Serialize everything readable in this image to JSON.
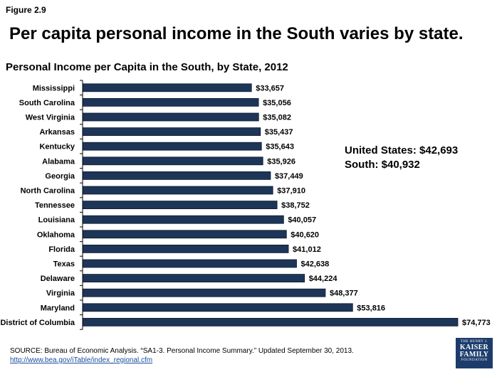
{
  "figure_label": "Figure 2.9",
  "headline": "Per capita personal income in the South varies by state.",
  "summary": {
    "line1": "United States: $42,693",
    "line2": "South: $40,932"
  },
  "source": {
    "text": "SOURCE: Bureau of Economic Analysis. “SA1-3. Personal Income Summary.” Updated September 30, 2013.",
    "url": "http://www.bea.gov/iTable/index_regional.cfm"
  },
  "logo": {
    "line1": "THE HENRY J.",
    "line2": "KAISER",
    "line3": "FAMILY",
    "line4": "FOUNDATION"
  },
  "colors": {
    "bar": "#1d3557",
    "bar_stroke": "#0d1a33",
    "axis": "#000000",
    "logo_bg": "#1d3c6c"
  },
  "chart_data": {
    "type": "bar",
    "orientation": "horizontal",
    "title": "Personal Income per Capita in the South, by State, 2012",
    "categories": [
      "Mississippi",
      "South Carolina",
      "West Virginia",
      "Arkansas",
      "Kentucky",
      "Alabama",
      "Georgia",
      "North Carolina",
      "Tennessee",
      "Louisiana",
      "Oklahoma",
      "Florida",
      "Texas",
      "Delaware",
      "Virginia",
      "Maryland",
      "District of Columbia"
    ],
    "values": [
      33657,
      35056,
      35082,
      35437,
      35643,
      35926,
      37449,
      37910,
      38752,
      40057,
      40620,
      41012,
      42638,
      44224,
      48377,
      53816,
      74773
    ],
    "labels": [
      "$33,657",
      "$35,056",
      "$35,082",
      "$35,437",
      "$35,643",
      "$35,926",
      "$37,449",
      "$37,910",
      "$38,752",
      "$40,057",
      "$40,620",
      "$41,012",
      "$42,638",
      "$44,224",
      "$48,377",
      "$53,816",
      "$74,773"
    ],
    "xlim": [
      0,
      74773
    ],
    "grid": false,
    "legend": "none"
  }
}
